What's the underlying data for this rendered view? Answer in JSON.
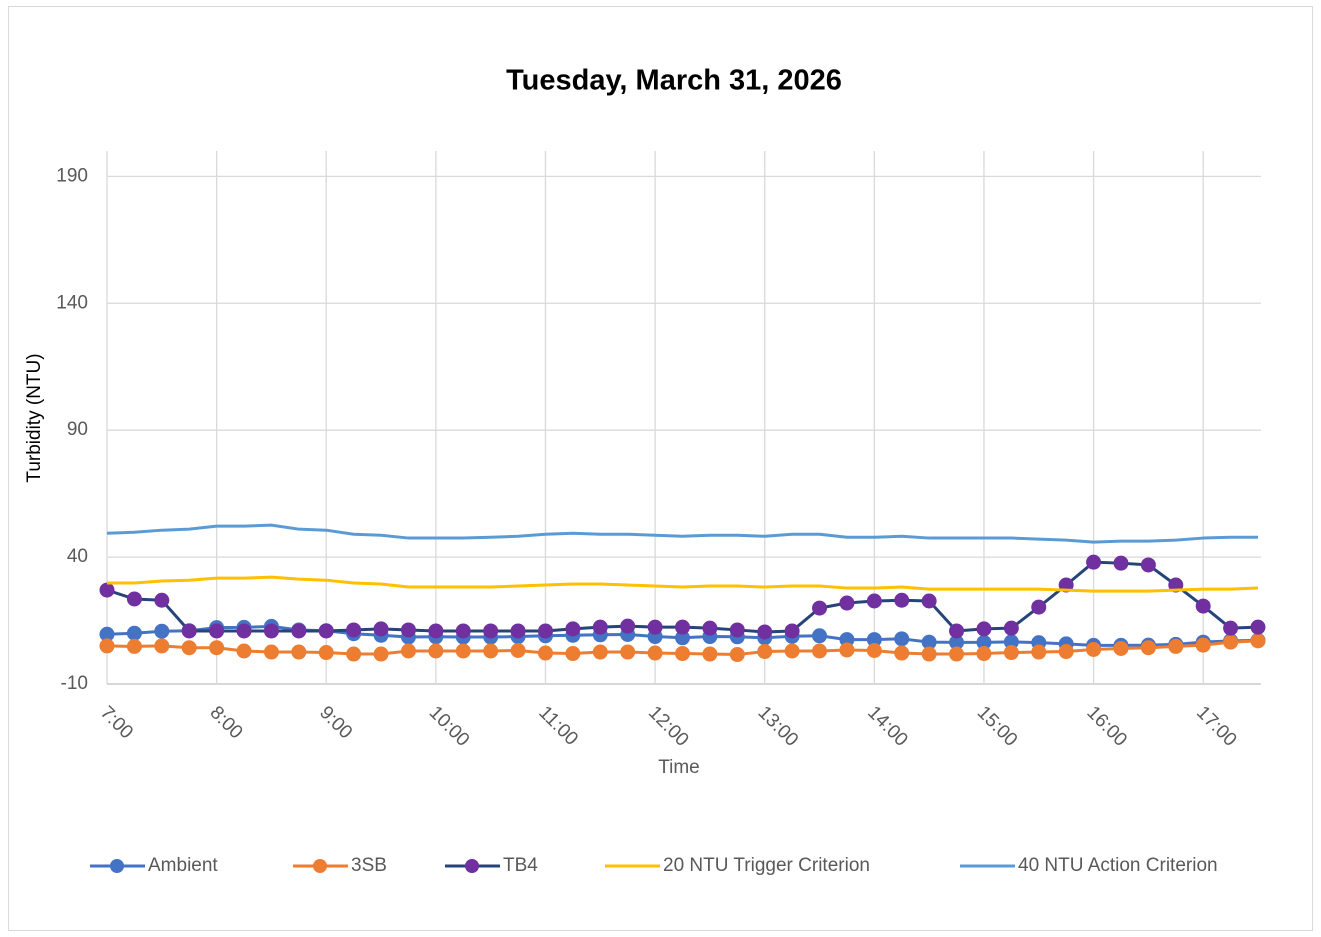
{
  "chart_data": {
    "type": "line",
    "title": "Tuesday, March 31, 2026",
    "x_label": "Time",
    "y_label": "Turbidity (NTU)",
    "categories": [
      "7:00",
      null,
      null,
      null,
      "8:00",
      null,
      null,
      null,
      "9:00",
      null,
      null,
      null,
      "10:00",
      null,
      null,
      null,
      "11:00",
      null,
      null,
      null,
      "12:00",
      null,
      null,
      null,
      "13:00",
      null,
      null,
      null,
      "14:00",
      null,
      null,
      null,
      "15:00",
      null,
      null,
      null,
      "16:00",
      null,
      null,
      null,
      "17:00",
      null,
      null
    ],
    "ylim": [
      -10,
      200
    ],
    "yticks": [
      -10,
      40,
      90,
      140,
      190
    ],
    "grid": true,
    "legend": "bottom",
    "series": [
      {
        "name": "Ambient",
        "color": "#4472c4",
        "marker_color": "#4472c4",
        "markers": true,
        "values": [
          9.6,
          10,
          10.8,
          11,
          12.2,
          12.3,
          12.7,
          11.3,
          11,
          9.8,
          9.2,
          8.5,
          8.6,
          8.5,
          8.5,
          8.7,
          9,
          9.2,
          9.4,
          9.5,
          8.7,
          8.2,
          8.7,
          8.6,
          8.2,
          8.8,
          9,
          7.5,
          7.5,
          7.8,
          6.5,
          6.4,
          6.4,
          6.6,
          6.3,
          5.8,
          5.2,
          5.2,
          5.3,
          5.6,
          6.5,
          7,
          7.2
        ]
      },
      {
        "name": "3SB",
        "color": "#ed7d31",
        "marker_color": "#ed7d31",
        "markers": true,
        "values": [
          5,
          4.8,
          5,
          4.3,
          4.3,
          3,
          2.6,
          2.6,
          2.4,
          1.8,
          1.8,
          3,
          3,
          3,
          3,
          3.2,
          2.2,
          2,
          2.6,
          2.6,
          2.2,
          2,
          1.8,
          1.6,
          2.8,
          3,
          3,
          3.4,
          3.2,
          2.2,
          1.8,
          1.8,
          2,
          2.4,
          2.6,
          2.8,
          3.6,
          4,
          4.3,
          4.8,
          5.3,
          6.5,
          7
        ]
      },
      {
        "name": "TB4",
        "color": "#264478",
        "marker_color": "#7030a0",
        "markers": true,
        "values": [
          27,
          23.5,
          23,
          10.9,
          10.9,
          10.9,
          10.9,
          10.9,
          10.9,
          11.3,
          11.7,
          11.3,
          10.9,
          10.9,
          10.9,
          10.9,
          10.9,
          11.7,
          12.4,
          12.8,
          12.4,
          12.4,
          12,
          11.3,
          10.5,
          10.9,
          19.9,
          21.9,
          22.7,
          23,
          22.7,
          10.9,
          11.7,
          12,
          20.3,
          29,
          38,
          37.6,
          36.9,
          29,
          20.7,
          12,
          12.4
        ]
      },
      {
        "name": "20 NTU Trigger Criterion",
        "color": "#ffc000",
        "markers": false,
        "values": [
          29.8,
          29.8,
          30.6,
          30.9,
          31.7,
          31.7,
          32.1,
          31.3,
          30.9,
          29.8,
          29.4,
          28.2,
          28.2,
          28.2,
          28.2,
          28.6,
          29,
          29.4,
          29.4,
          29,
          28.6,
          28.2,
          28.6,
          28.6,
          28.2,
          28.6,
          28.6,
          27.8,
          27.8,
          28.2,
          27.4,
          27.4,
          27.4,
          27.4,
          27.4,
          27,
          26.6,
          26.6,
          26.6,
          27,
          27.4,
          27.4,
          27.8
        ]
      },
      {
        "name": "40 NTU Action Criterion",
        "color": "#5b9bd5",
        "markers": false,
        "values": [
          49.4,
          49.8,
          50.6,
          51,
          52.2,
          52.2,
          52.6,
          51,
          50.6,
          49,
          48.6,
          47.5,
          47.5,
          47.5,
          47.8,
          48.2,
          49,
          49.4,
          49,
          49,
          48.6,
          48.2,
          48.6,
          48.6,
          48.2,
          49,
          49,
          47.8,
          47.8,
          48.2,
          47.5,
          47.5,
          47.5,
          47.5,
          47.1,
          46.7,
          45.9,
          46.3,
          46.3,
          46.7,
          47.5,
          47.8,
          47.8
        ]
      }
    ]
  }
}
